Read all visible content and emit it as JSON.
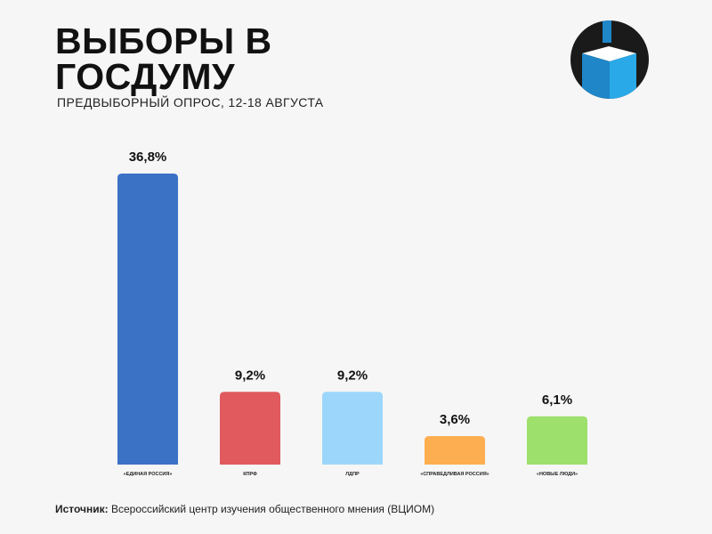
{
  "header": {
    "title_line1": "ВЫБОРЫ В",
    "title_line2": "ГОСДУМУ",
    "subtitle": "ПРЕДВЫБОРНЫЙ ОПРОС, 12-18 АВГУСТА"
  },
  "source": {
    "label": "Источник:",
    "text": "Всероссийский центр изучения общественного мнения (ВЦИОМ)"
  },
  "logo": {
    "icon": "ballot-box-icon",
    "colors": [
      "#1a1a1a",
      "#1f86c8",
      "#29a9e8",
      "#ffffff"
    ]
  },
  "chart_data": {
    "type": "bar",
    "categories": [
      "«ЕДИНАЯ РОССИЯ»",
      "КПРФ",
      "ЛДПР",
      "«СПРАВЕДЛИВАЯ РОССИЯ»",
      "«НОВЫЕ ЛЮДИ»"
    ],
    "values": [
      36.8,
      9.2,
      9.2,
      3.6,
      6.1
    ],
    "value_labels": [
      "36,8%",
      "9,2%",
      "9,2%",
      "3,6%",
      "6,1%"
    ],
    "colors": [
      "#3b72c6",
      "#e05a5e",
      "#9cd7fb",
      "#fdae50",
      "#9de06c"
    ],
    "ylim": [
      0,
      36.8
    ],
    "grid": false
  }
}
